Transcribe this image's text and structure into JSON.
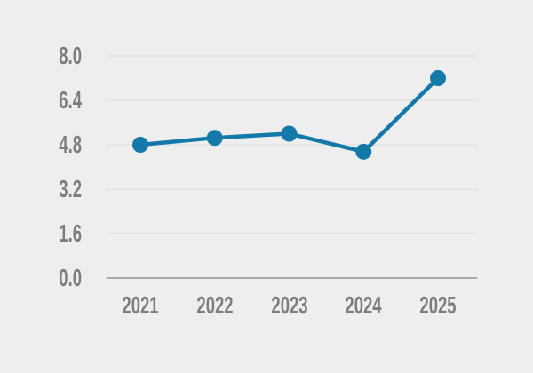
{
  "chart_data": {
    "type": "line",
    "title": "",
    "xlabel": "",
    "ylabel": "",
    "categories": [
      "2021",
      "2022",
      "2023",
      "2024",
      "2025"
    ],
    "series": [
      {
        "name": "series-1",
        "values": [
          4.8,
          5.05,
          5.2,
          4.55,
          7.2
        ]
      }
    ],
    "ylim": [
      0.0,
      8.0
    ],
    "yticks": [
      0.0,
      1.6,
      3.2,
      4.8,
      6.4,
      8.0
    ],
    "ytick_labels": [
      "0.0",
      "1.6",
      "3.2",
      "4.8",
      "6.4",
      "8.0"
    ],
    "grid": true,
    "legend": "none",
    "colors": {
      "background": "#eeeeee",
      "line": "#1478a9",
      "marker": "#1478a9",
      "gridline": "#e2e2e2",
      "baseline": "#a9a9a9",
      "label_text": "#7d7d7d"
    }
  }
}
